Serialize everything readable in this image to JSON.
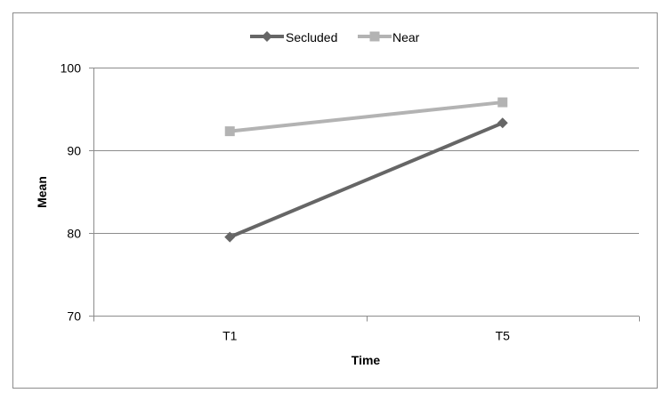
{
  "chart_data": {
    "type": "line",
    "categories": [
      "T1",
      "T5"
    ],
    "series": [
      {
        "name": "Secluded",
        "values": [
          79.5,
          93.3
        ],
        "color": "#666666",
        "marker": "diamond"
      },
      {
        "name": "Near",
        "values": [
          92.3,
          95.8
        ],
        "color": "#b3b3b3",
        "marker": "square"
      }
    ],
    "title": "",
    "xlabel": "Time",
    "ylabel": "Mean",
    "ylim": [
      70,
      100
    ],
    "yticks": [
      70,
      80,
      90,
      100
    ],
    "grid": "horizontal",
    "legend": "top-center"
  }
}
